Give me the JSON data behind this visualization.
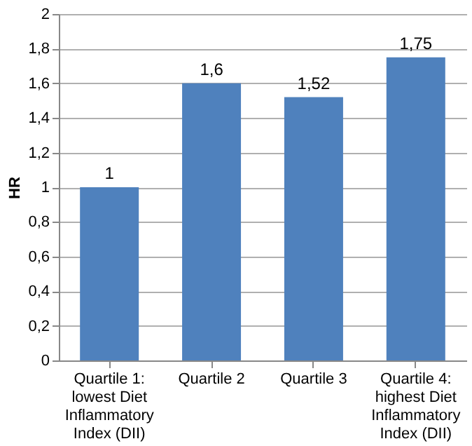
{
  "chart_data": {
    "type": "bar",
    "ylabel": "HR",
    "categories": [
      "Quartile 1: lowest Diet Inflammatory Index (DII)",
      "Quartile 2",
      "Quartile 3",
      "Quartile 4: highest Diet Inflammatory Index (DII)"
    ],
    "values": [
      1,
      1.6,
      1.52,
      1.75
    ],
    "value_labels": [
      "1",
      "1,6",
      "1,52",
      "1,75"
    ],
    "color": "#4f81bd",
    "ylim": [
      0,
      2
    ],
    "yticks": [
      0,
      {
        "value": 0.2,
        "label": "0,2"
      },
      {
        "value": 0.4,
        "label": "0,4"
      },
      {
        "value": 0.6,
        "label": "0,6"
      },
      {
        "value": 0.8,
        "label": "0,8"
      },
      1,
      {
        "value": 1.2,
        "label": "1,2"
      },
      {
        "value": 1.4,
        "label": "1,4"
      },
      {
        "value": 1.6,
        "label": "1,6"
      },
      {
        "value": 1.8,
        "label": "1,8"
      },
      2
    ],
    "grid": "y"
  }
}
